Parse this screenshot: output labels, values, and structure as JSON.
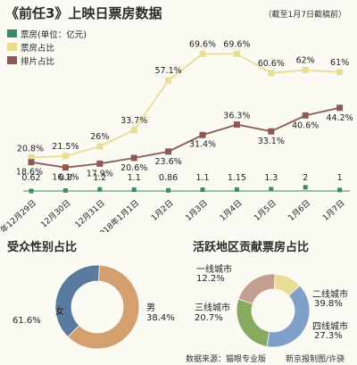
{
  "title": "《前任3》上映日票房数据",
  "note": "（截至1月7日截稿前）",
  "colors": {
    "box": "#3a8a6a",
    "share": "#e8dd92",
    "rank": "#8a5a55",
    "female": "#d4a070",
    "male": "#5a7aa0",
    "tier1": "#e8dd92",
    "tier2": "#7fa0c8",
    "tier3": "#c4a090",
    "tier4": "#88aa60"
  },
  "chart_data": [
    {
      "type": "line",
      "legend": [
        "票房(单位：亿元)",
        "票房占比",
        "排片占比"
      ],
      "categories": [
        "2017年12月29日",
        "12月30日",
        "12月31日",
        "2018年1月1日",
        "1月2日",
        "1月3日",
        "1月4日",
        "1月5日",
        "1月6日",
        "1月7日"
      ],
      "series": [
        {
          "name": "票房(单位：亿元)",
          "values": [
            0.62,
            0.8,
            1.2,
            1.1,
            0.86,
            1.1,
            1.15,
            1.3,
            2,
            1
          ],
          "labels": [
            "0.62",
            "0.8",
            "1.2",
            "1.1",
            "0.86",
            "1.1",
            "1.15",
            "1.3",
            "2",
            "1"
          ]
        },
        {
          "name": "票房占比",
          "values": [
            20.8,
            21.5,
            26,
            33.7,
            57.1,
            69.6,
            69.6,
            60.6,
            62,
            61
          ],
          "labels": [
            "20.8%",
            "21.5%",
            "26%",
            "33.7%",
            "57.1%",
            "69.6%",
            "69.6%",
            "60.6%",
            "62%",
            "61%"
          ]
        },
        {
          "name": "排片占比",
          "values": [
            18.6,
            16.1,
            17.9,
            20.6,
            23.6,
            31.4,
            36.3,
            33.1,
            40.6,
            44.2
          ],
          "labels": [
            "18.6%",
            "16.1%",
            "17.9%",
            "20.6%",
            "23.6%",
            "31.4%",
            "36.3%",
            "33.1%",
            "40.6%",
            "44.2%"
          ]
        }
      ]
    },
    {
      "type": "pie",
      "title": "受众性别占比",
      "slices": [
        {
          "label": "女",
          "value": 61.6,
          "value_label": "61.6%"
        },
        {
          "label": "男",
          "value": 38.4,
          "value_label": "38.4%"
        }
      ]
    },
    {
      "type": "pie",
      "title": "活跃地区贡献票房占比",
      "slices": [
        {
          "label": "一线城市",
          "value": 12.2,
          "value_label": "12.2%"
        },
        {
          "label": "二线城市",
          "value": 39.8,
          "value_label": "39.8%"
        },
        {
          "label": "四线城市",
          "value": 27.3,
          "value_label": "27.3%"
        },
        {
          "label": "三线城市",
          "value": 20.7,
          "value_label": "20.7%"
        }
      ]
    }
  ],
  "footer": {
    "source": "数据来源：猫眼专业版",
    "credit": "新京报制图/许骁"
  }
}
